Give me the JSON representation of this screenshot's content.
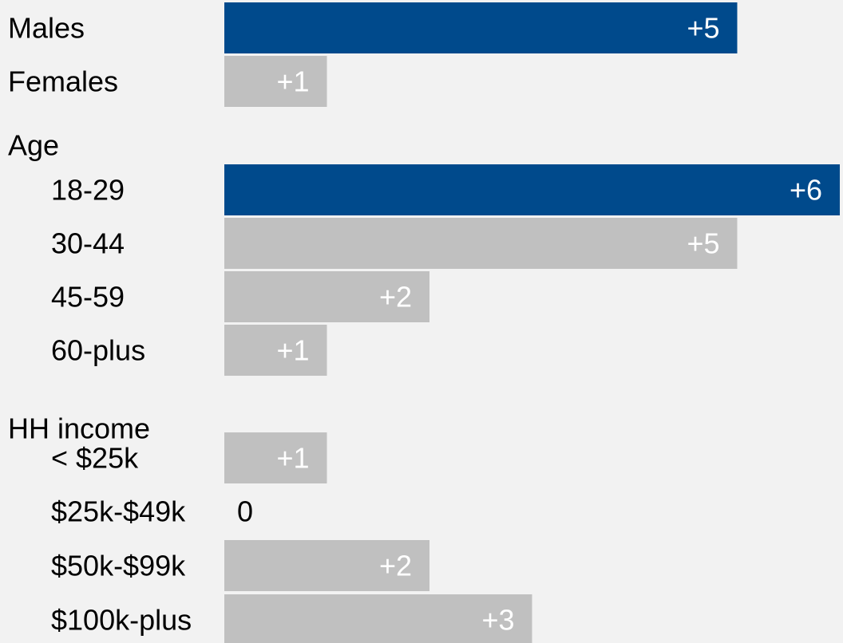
{
  "chart_data": {
    "type": "bar",
    "orientation": "horizontal",
    "categories": [
      "Males",
      "Females",
      "Age",
      "18-29",
      "30-44",
      "45-59",
      "60-plus",
      "HH income",
      "< $25k",
      "$25k-$49k",
      "$50k-$99k",
      "$100k-plus"
    ],
    "values": [
      5,
      1,
      null,
      6,
      5,
      2,
      1,
      null,
      1,
      0,
      2,
      3
    ],
    "value_labels": [
      "+5",
      "+1",
      "",
      "+6",
      "+5",
      "+2",
      "+1",
      "",
      "+1",
      "0",
      "+2",
      "+3"
    ],
    "highlighted": [
      true,
      false,
      false,
      true,
      false,
      false,
      false,
      false,
      false,
      false,
      false,
      false
    ],
    "group_headers": [
      "Age",
      "HH income"
    ],
    "colors": {
      "highlight": "#004a8c",
      "default": "#c0c0c0",
      "background": "#f2f2f2",
      "bar_label": "#ffffff",
      "zero_label": "#000000",
      "category_label": "#000000"
    },
    "title": "",
    "xlabel": "",
    "ylabel": "",
    "grid": false,
    "legend": "none"
  }
}
